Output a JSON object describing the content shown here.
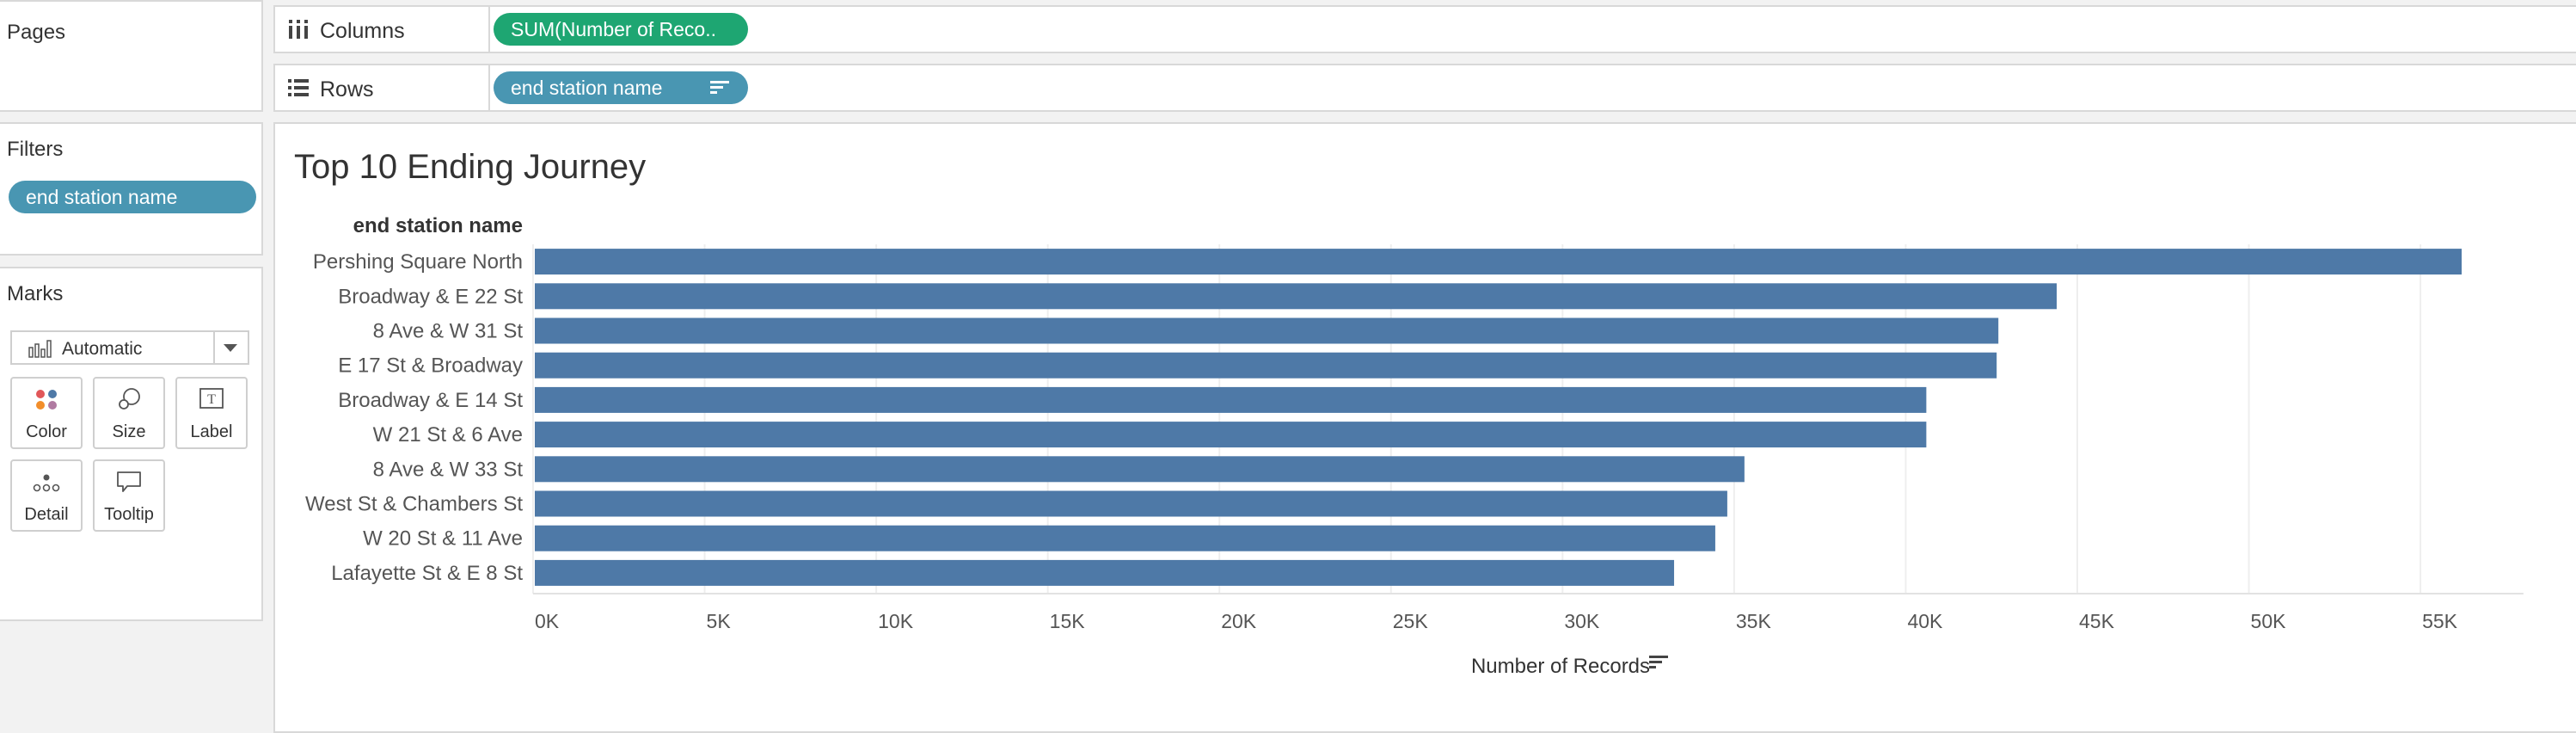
{
  "sidebar": {
    "pages_title": "Pages",
    "filters_title": "Filters",
    "filter_pill": "end station name",
    "marks_title": "Marks",
    "mark_type": "Automatic",
    "cards": [
      {
        "label": "Color",
        "icon": "color-dots-icon"
      },
      {
        "label": "Size",
        "icon": "size-shapes-icon"
      },
      {
        "label": "Label",
        "icon": "label-text-icon"
      },
      {
        "label": "Detail",
        "icon": "detail-dots-icon"
      },
      {
        "label": "Tooltip",
        "icon": "tooltip-bubble-icon"
      }
    ]
  },
  "shelves": {
    "columns_label": "Columns",
    "columns_pill": "SUM(Number of Reco..",
    "rows_label": "Rows",
    "rows_pill": "end station name"
  },
  "colors": {
    "bar": "#4e79a7",
    "columns_pill": "#1ea672",
    "rows_pill": "#4996b2"
  },
  "chart_data": {
    "type": "bar",
    "orientation": "horizontal",
    "title": "Top 10 Ending Journey",
    "row_header": "end station name",
    "xlabel": "Number of Records",
    "categories": [
      "Pershing Square North",
      "Broadway & E 22 St",
      "8 Ave & W 31 St",
      "E 17 St & Broadway",
      "Broadway & E 14 St",
      "W 21 St & 6 Ave",
      "8 Ave & W 33 St",
      "West St & Chambers St",
      "W 20 St & 11 Ave",
      "Lafayette St & E 8 St"
    ],
    "values": [
      56200,
      44400,
      42700,
      42650,
      40600,
      40600,
      35300,
      34800,
      34450,
      33250
    ],
    "xlim": [
      0,
      58000
    ],
    "xticks": [
      0,
      5000,
      10000,
      15000,
      20000,
      25000,
      30000,
      35000,
      40000,
      45000,
      50000,
      55000
    ],
    "xtick_labels": [
      "0K",
      "5K",
      "10K",
      "15K",
      "20K",
      "25K",
      "30K",
      "35K",
      "40K",
      "45K",
      "50K",
      "55K"
    ],
    "grid": true
  }
}
